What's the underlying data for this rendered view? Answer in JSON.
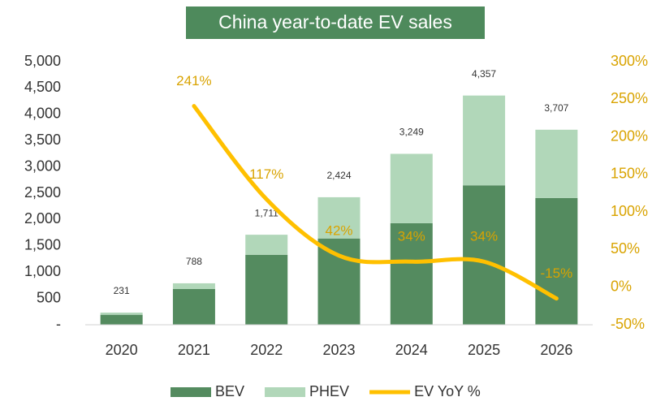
{
  "chart_data": {
    "type": "stacked_bar_line",
    "title": "China year-to-date EV sales",
    "categories": [
      "2020",
      "2021",
      "2022",
      "2023",
      "2024",
      "2025",
      "2026"
    ],
    "series": [
      {
        "name": "BEV",
        "color": "#548b5f",
        "values": [
          190,
          680,
          1330,
          1640,
          1930,
          2650,
          2410
        ]
      },
      {
        "name": "PHEV",
        "color": "#b1d7b9",
        "values": [
          41,
          108,
          381,
          784,
          1319,
          1707,
          1297
        ]
      },
      {
        "name": "EV YoY %",
        "color": "#ffc000",
        "type": "line",
        "axis": "y2",
        "values": [
          null,
          241,
          117,
          42,
          34,
          34,
          -15
        ],
        "value_labels": [
          null,
          "241%",
          "117%",
          "42%",
          "34%",
          "34%",
          "-15%"
        ]
      }
    ],
    "totals": [
      231,
      788,
      1711,
      2424,
      3249,
      4357,
      3707
    ],
    "total_labels": [
      "231",
      "788",
      "1,711",
      "2,424",
      "3,249",
      "4,357",
      "3,707"
    ],
    "ylim": [
      0,
      5000
    ],
    "yticks": [
      {
        "value": 0,
        "label": "-"
      },
      500,
      {
        "value": 1000,
        "label": "1,000"
      },
      {
        "value": 1500,
        "label": "1,500"
      },
      {
        "value": 2000,
        "label": "2,000"
      },
      {
        "value": 2500,
        "label": "2,500"
      },
      {
        "value": 3000,
        "label": "3,000"
      },
      {
        "value": 3500,
        "label": "3,500"
      },
      {
        "value": 4000,
        "label": "4,000"
      },
      {
        "value": 4500,
        "label": "4,500"
      },
      {
        "value": 5000,
        "label": "5,000"
      }
    ],
    "y2lim": [
      -50,
      300
    ],
    "y2ticks": [
      {
        "value": -50,
        "label": "-50%"
      },
      {
        "value": 0,
        "label": "0%"
      },
      {
        "value": 50,
        "label": "50%"
      },
      {
        "value": 100,
        "label": "100%"
      },
      {
        "value": 150,
        "label": "150%"
      },
      {
        "value": 200,
        "label": "200%"
      },
      {
        "value": 250,
        "label": "250%"
      },
      {
        "value": 300,
        "label": "300%"
      }
    ],
    "y2_label_color": "#d9a300",
    "title_background": "#4e8a5c",
    "grid": false,
    "legend": "bottom"
  }
}
